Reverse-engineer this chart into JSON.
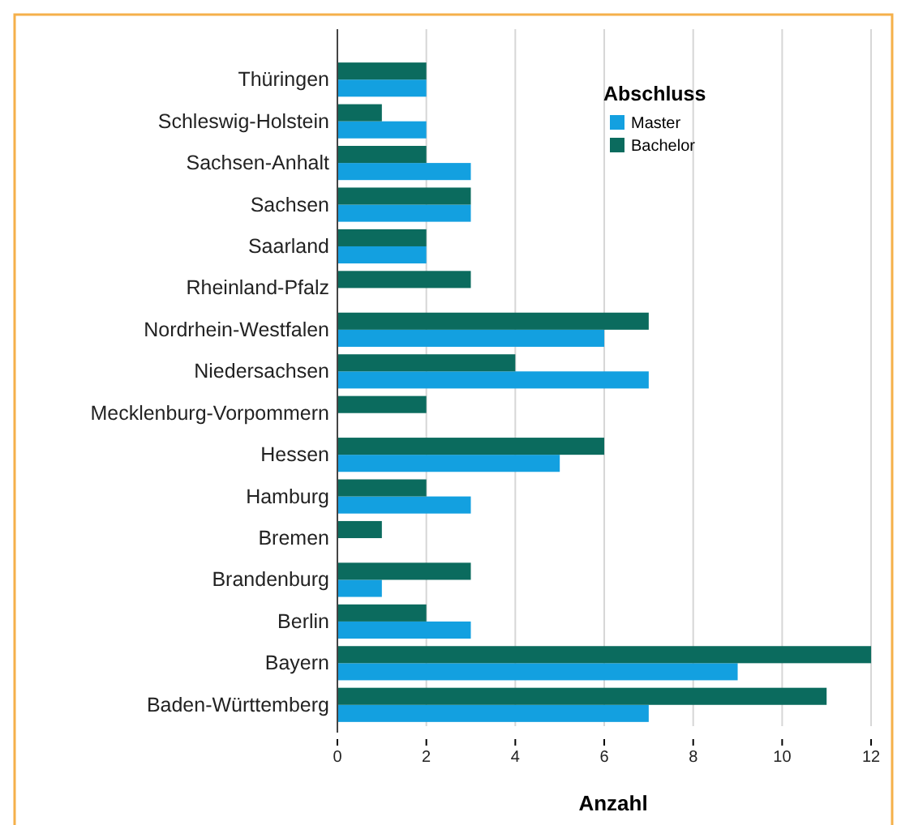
{
  "chart_data": {
    "type": "bar",
    "orientation": "horizontal",
    "categories": [
      "Thüringen",
      "Schleswig-Holstein",
      "Sachsen-Anhalt",
      "Sachsen",
      "Saarland",
      "Rheinland-Pfalz",
      "Nordrhein-Westfalen",
      "Niedersachsen",
      "Mecklenburg-Vorpommern",
      "Hessen",
      "Hamburg",
      "Bremen",
      "Brandenburg",
      "Berlin",
      "Bayern",
      "Baden-Württemberg"
    ],
    "series": [
      {
        "name": "Master",
        "color": "#13a0e0",
        "values": [
          2,
          2,
          3,
          3,
          2,
          0,
          6,
          7,
          0,
          5,
          3,
          0,
          1,
          3,
          9,
          7
        ]
      },
      {
        "name": "Bachelor",
        "color": "#0b6b5e",
        "values": [
          2,
          1,
          2,
          3,
          2,
          3,
          7,
          4,
          2,
          6,
          2,
          1,
          3,
          2,
          12,
          11
        ]
      }
    ],
    "xlabel": "Anzahl",
    "legend_title": "Abschluss",
    "legend": "top right",
    "grid": "x",
    "xlim": [
      0,
      12.4
    ],
    "xticks": [
      0,
      2,
      4,
      6,
      8,
      10,
      12
    ]
  }
}
